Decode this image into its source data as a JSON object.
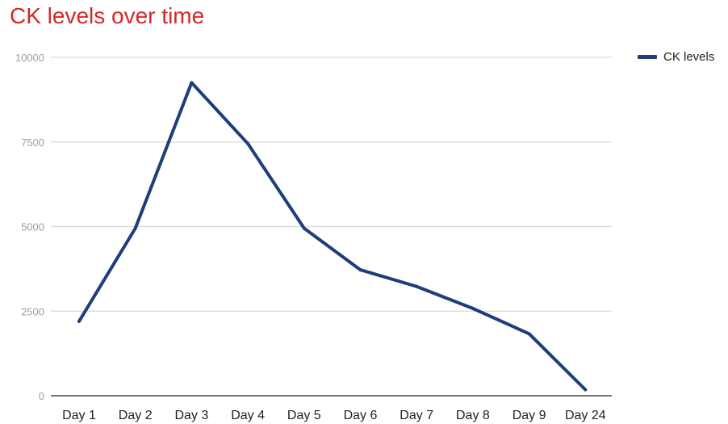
{
  "chart_data": {
    "type": "line",
    "title": "CK levels over time",
    "categories": [
      "Day 1",
      "Day 2",
      "Day 3",
      "Day 4",
      "Day 5",
      "Day 6",
      "Day 7",
      "Day 8",
      "Day 9",
      "Day 24"
    ],
    "series": [
      {
        "name": "CK levels",
        "color": "#1f3d7a",
        "values": [
          2200,
          4950,
          9250,
          7450,
          4950,
          3720,
          3230,
          2580,
          1830,
          180
        ]
      }
    ],
    "ylim": [
      0,
      10000
    ],
    "yticks": [
      0,
      2500,
      5000,
      7500,
      10000
    ],
    "xlabel": "",
    "ylabel": "",
    "grid": true,
    "legend_position": "top-right",
    "title_color": "#d62728",
    "grid_color": "#d9d9d9",
    "axis_color": "#444444"
  }
}
